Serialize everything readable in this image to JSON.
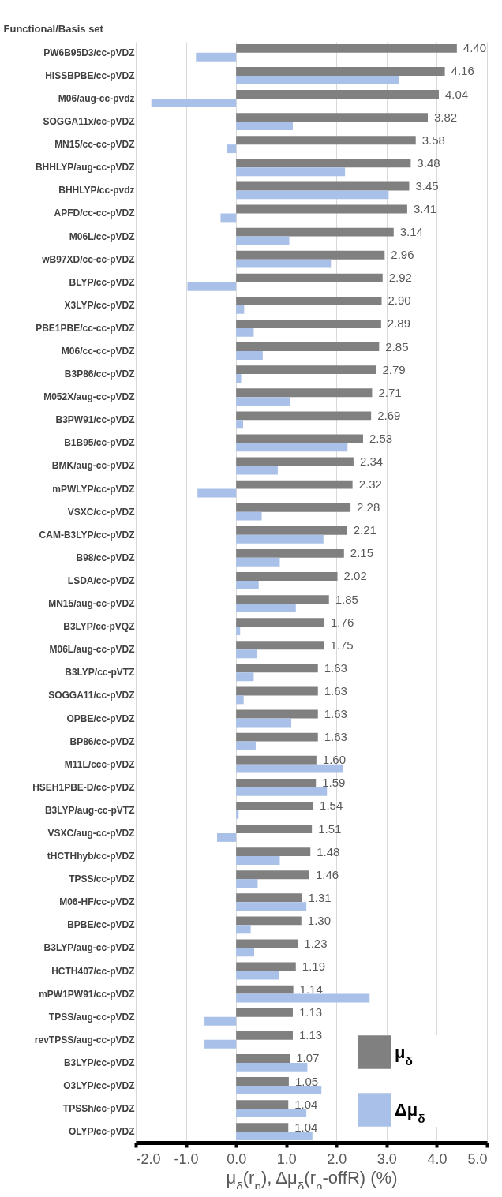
{
  "chart_data": {
    "type": "bar",
    "orientation": "horizontal",
    "ylabel": "Functional/Basis set",
    "xlabel": "μ$_{δ}$(r$_{n}$), Δμ$_{δ}$(r$_{n}$-offR) (%)",
    "categories": [
      "PW6B95D3/cc-pVDZ",
      "HISSBPBE/cc-pVDZ",
      "M06/aug-cc-pvdz",
      "SOGGA11x/cc-pVDZ",
      "MN15/cc-cc-pVDZ",
      "BHHLYP/aug-cc-pVDZ",
      "BHHLYP/cc-pvdz",
      "APFD/cc-cc-pVDZ",
      "M06L/cc-pVDZ",
      "wB97XD/cc-cc-pVDZ",
      "BLYP/cc-pVDZ",
      "X3LYP/cc-pVDZ",
      "PBE1PBE/cc-cc-pVDZ",
      "M06/cc-cc-pVDZ",
      "B3P86/cc-pVDZ",
      "M052X/aug-cc-pVDZ",
      "B3PW91/cc-pVDZ",
      "B1B95/cc-pVDZ",
      "BMK/aug-cc-pVDZ",
      "mPWLYP/cc-pVDZ",
      "VSXC/cc-pVDZ",
      "CAM-B3LYP/cc-pVDZ",
      "B98/cc-pVDZ",
      "LSDA/cc-pVDZ",
      "MN15/aug-cc-pVDZ",
      "B3LYP/cc-pVQZ",
      "M06L/aug-cc-pVDZ",
      "B3LYP/cc-pVTZ",
      "SOGGA11/cc-pVDZ",
      "OPBE/cc-pVDZ",
      "BP86/cc-pVDZ",
      "M11L/ccc-pVDZ",
      "HSEH1PBE-D/cc-pVDZ",
      "B3LYP/aug-cc-pVTZ",
      "VSXC/aug-cc-pVDZ",
      "tHCTHhyb/cc-pVDZ",
      "TPSS/cc-pVDZ",
      "M06-HF/cc-pVDZ",
      "BPBE/cc-pVDZ",
      "B3LYP/aug-cc-pVDZ",
      "HCTH407/cc-pVDZ",
      "mPW1PW91/cc-pVDZ",
      "TPSS/aug-cc-pVDZ",
      "revTPSS/aug-cc-pVDZ",
      "B3LYP/cc-pVDZ",
      "O3LYP/cc-pVDZ",
      "TPSSh/cc-pVDZ",
      "OLYP/cc-pVDZ"
    ],
    "series": [
      {
        "name": "μ$_{δ}$",
        "color": "#808080",
        "values": [
          4.4,
          4.16,
          4.04,
          3.82,
          3.58,
          3.48,
          3.45,
          3.41,
          3.14,
          2.96,
          2.92,
          2.9,
          2.89,
          2.85,
          2.79,
          2.71,
          2.69,
          2.53,
          2.34,
          2.32,
          2.28,
          2.21,
          2.15,
          2.02,
          1.85,
          1.76,
          1.75,
          1.63,
          1.63,
          1.63,
          1.63,
          1.6,
          1.59,
          1.54,
          1.51,
          1.48,
          1.46,
          1.31,
          1.3,
          1.23,
          1.19,
          1.14,
          1.13,
          1.13,
          1.07,
          1.05,
          1.04,
          1.04
        ],
        "value_labels": [
          "4.40",
          "4.16",
          "4.04",
          "3.82",
          "3.58",
          "3.48",
          "3.45",
          "3.41",
          "3.14",
          "2.96",
          "2.92",
          "2.90",
          "2.89",
          "2.85",
          "2.79",
          "2.71",
          "2.69",
          "2.53",
          "2.34",
          "2.32",
          "2.28",
          "2.21",
          "2.15",
          "2.02",
          "1.85",
          "1.76",
          "1.75",
          "1.63",
          "1.63",
          "1.63",
          "1.63",
          "1.60",
          "1.59",
          "1.54",
          "1.51",
          "1.48",
          "1.46",
          "1.31",
          "1.30",
          "1.23",
          "1.19",
          "1.14",
          "1.13",
          "1.13",
          "1.07",
          "1.05",
          "1.04",
          "1.04"
        ]
      },
      {
        "name": "Δμ$_{δ}$",
        "color": "#a9c0e8",
        "values": [
          -0.8,
          3.25,
          -1.69,
          1.13,
          -0.18,
          2.17,
          3.04,
          -0.31,
          1.06,
          1.89,
          -0.97,
          0.16,
          0.35,
          0.53,
          0.1,
          1.07,
          0.14,
          2.22,
          0.83,
          -0.77,
          0.51,
          1.74,
          0.87,
          0.45,
          1.19,
          0.08,
          0.42,
          0.35,
          0.15,
          1.1,
          0.39,
          2.13,
          1.81,
          0.05,
          -0.38,
          0.87,
          0.43,
          1.4,
          0.29,
          0.36,
          0.86,
          2.66,
          -0.63,
          -0.63,
          1.42,
          1.7,
          1.4,
          1.52
        ]
      }
    ],
    "xlim": [
      -2,
      5
    ],
    "xticks": [
      {
        "value": -2,
        "label": "-2.0"
      },
      {
        "value": -1,
        "label": "-1.0"
      },
      {
        "value": 0,
        "label": "0.0"
      },
      {
        "value": 1,
        "label": "1.0"
      },
      {
        "value": 2,
        "label": "2.0"
      },
      {
        "value": 3,
        "label": "3.0"
      },
      {
        "value": 4,
        "label": "4.0"
      },
      {
        "value": 5,
        "label": "5.0"
      }
    ],
    "grid": "x",
    "legend": "bottom right"
  }
}
